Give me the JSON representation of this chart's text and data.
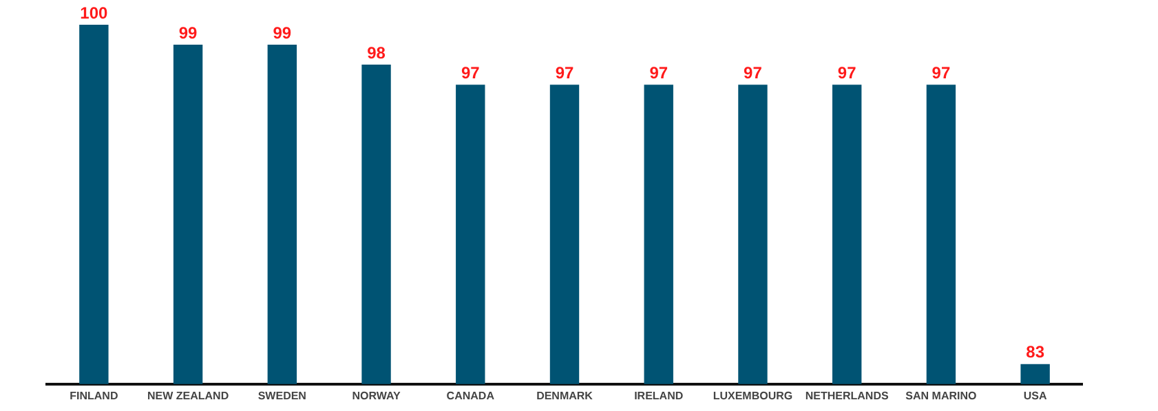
{
  "chart_data": {
    "type": "bar",
    "categories": [
      "FINLAND",
      "NEW ZEALAND",
      "SWEDEN",
      "NORWAY",
      "CANADA",
      "DENMARK",
      "IRELAND",
      "LUXEMBOURG",
      "NETHERLANDS",
      "SAN MARINO",
      "USA"
    ],
    "values": [
      100,
      99,
      99,
      98,
      97,
      97,
      97,
      97,
      97,
      97,
      83
    ],
    "color": "#005373",
    "data_labels": true,
    "grid": false,
    "legend": false,
    "tick_labels": "x"
  }
}
